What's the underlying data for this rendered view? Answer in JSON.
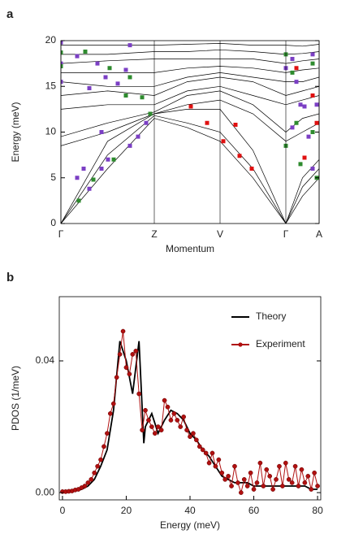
{
  "chart_data": [
    {
      "type": "line",
      "panel": "a",
      "ylabel": "Energy (meV)",
      "xlabel": "Momentum",
      "xlim": [
        0,
        3.18
      ],
      "ylim": [
        0,
        20
      ],
      "xticks": [
        {
          "value": 0,
          "label": "Γ"
        },
        {
          "value": 1.15,
          "label": "Z"
        },
        {
          "value": 1.96,
          "label": "V"
        },
        {
          "value": 2.77,
          "label": "Γ"
        },
        {
          "value": 3.18,
          "label": "A"
        }
      ],
      "yticks": [
        0,
        5,
        10,
        15,
        20
      ],
      "grid": "x",
      "series": [
        {
          "style": "line",
          "color": "#000000",
          "x": [
            0,
            0.575,
            1.15,
            1.555,
            1.96,
            2.365,
            2.77,
            2.975,
            3.18
          ],
          "values": [
            0,
            6,
            11.5,
            10.5,
            9,
            5,
            0,
            3,
            5
          ]
        },
        {
          "style": "line",
          "color": "#000000",
          "x": [
            0,
            0.575,
            1.15,
            1.555,
            1.96,
            2.365,
            2.77,
            2.975,
            3.18
          ],
          "values": [
            0,
            7.5,
            11.8,
            11,
            10,
            6,
            0,
            4,
            6
          ]
        },
        {
          "style": "line",
          "color": "#000000",
          "x": [
            0,
            0.575,
            1.15,
            1.555,
            1.96,
            2.365,
            2.77,
            2.975,
            3.18
          ],
          "values": [
            0,
            9,
            12,
            12.5,
            12.5,
            8,
            0,
            5,
            7
          ]
        },
        {
          "style": "line",
          "color": "#000000",
          "x": [
            0,
            0.575,
            1.15,
            1.555,
            1.96,
            2.365,
            2.77,
            2.975,
            3.18
          ],
          "values": [
            8.5,
            10,
            12,
            13,
            13.5,
            12,
            9,
            10,
            11
          ]
        },
        {
          "style": "line",
          "color": "#000000",
          "x": [
            0,
            0.575,
            1.15,
            1.555,
            1.96,
            2.365,
            2.77,
            2.975,
            3.18
          ],
          "values": [
            9.5,
            11,
            12.2,
            14,
            14.5,
            13,
            10,
            11.5,
            12
          ]
        },
        {
          "style": "line",
          "color": "#000000",
          "x": [
            0,
            0.575,
            1.15,
            1.555,
            1.96,
            2.365,
            2.77,
            2.975,
            3.18
          ],
          "values": [
            12.5,
            13,
            13,
            14.5,
            15,
            14,
            13,
            13.5,
            14
          ]
        },
        {
          "style": "line",
          "color": "#000000",
          "x": [
            0,
            0.575,
            1.15,
            1.555,
            1.96,
            2.365,
            2.77,
            2.975,
            3.18
          ],
          "values": [
            14,
            14.5,
            14,
            15.5,
            16,
            15.5,
            14,
            14.5,
            15
          ]
        },
        {
          "style": "line",
          "color": "#000000",
          "x": [
            0,
            0.575,
            1.15,
            1.555,
            1.96,
            2.365,
            2.77,
            2.975,
            3.18
          ],
          "values": [
            15.5,
            15,
            15,
            16,
            16.5,
            16,
            15.5,
            15.5,
            16
          ]
        },
        {
          "style": "line",
          "color": "#000000",
          "x": [
            0,
            0.575,
            1.15,
            1.555,
            1.96,
            2.365,
            2.77,
            2.975,
            3.18
          ],
          "values": [
            16.5,
            16.5,
            16.5,
            17,
            17.2,
            17,
            16.5,
            16.8,
            17
          ]
        },
        {
          "style": "line",
          "color": "#000000",
          "x": [
            0,
            0.575,
            1.15,
            1.555,
            1.96,
            2.365,
            2.77,
            2.975,
            3.18
          ],
          "values": [
            17.5,
            17.8,
            18,
            18,
            18,
            18,
            17.5,
            17.8,
            18
          ]
        },
        {
          "style": "line",
          "color": "#000000",
          "x": [
            0,
            0.575,
            1.15,
            1.555,
            1.96,
            2.365,
            2.77,
            2.975,
            3.18
          ],
          "values": [
            18.5,
            18.5,
            18.8,
            18.8,
            19,
            18.8,
            18.5,
            18.6,
            18.8
          ]
        },
        {
          "style": "line",
          "color": "#000000",
          "x": [
            0,
            0.575,
            1.15,
            1.555,
            1.96,
            2.365,
            2.77,
            2.975,
            3.18
          ],
          "values": [
            19.5,
            19.5,
            19.5,
            19.6,
            19.7,
            19.5,
            19.5,
            19.4,
            19.6
          ]
        },
        {
          "style": "points",
          "color": "#7b3fc4",
          "x": [
            0,
            0,
            0,
            0.2,
            0.28,
            0.35,
            0.4,
            0.5,
            0.58,
            0.2,
            0.35,
            0.45,
            0.55,
            0.5,
            0.7,
            0.8,
            0.85,
            0.85,
            0.95,
            1.05,
            2.77,
            2.85,
            2.9,
            2.95,
            3.0,
            3.05,
            3.1,
            3.15,
            2.85,
            3.1
          ],
          "values": [
            19.8,
            17.5,
            15.5,
            5,
            6,
            3.8,
            4.8,
            6,
            7,
            18.3,
            14.8,
            17.5,
            16,
            10,
            15.3,
            16.8,
            19.5,
            8.5,
            9.5,
            11,
            17,
            18,
            15.5,
            13,
            12.8,
            9.5,
            18.5,
            13,
            10.5,
            6
          ]
        },
        {
          "style": "points",
          "color": "#2e8b2e",
          "x": [
            0,
            0,
            0.22,
            0.3,
            0.4,
            0.6,
            0.65,
            0.8,
            0.85,
            1.0,
            1.1,
            2.77,
            2.77,
            2.85,
            2.9,
            2.95,
            3.1,
            3.1,
            3.15
          ],
          "values": [
            18.7,
            17.2,
            2.5,
            18.8,
            4.8,
            17,
            7,
            14,
            16,
            13.8,
            12,
            18.5,
            8.5,
            16.5,
            11,
            6.5,
            17.5,
            10,
            5
          ]
        },
        {
          "style": "points",
          "color": "#e01010",
          "x": [
            1.6,
            1.8,
            2.0,
            2.15,
            2.2,
            2.35,
            2.9,
            3.0,
            3.1,
            3.15
          ],
          "values": [
            12.8,
            11,
            9,
            10.8,
            7.4,
            6,
            17,
            7.2,
            14,
            11
          ]
        }
      ]
    },
    {
      "type": "line",
      "panel": "b",
      "ylabel": "PDOS (1/meV)",
      "xlabel": "Energy (meV)",
      "xlim": [
        -1,
        81
      ],
      "ylim": [
        -0.0022,
        0.0595
      ],
      "xticks": [
        0,
        20,
        40,
        60,
        80
      ],
      "yticks": [
        {
          "value": 0,
          "label": "0.00"
        },
        {
          "value": 0.04,
          "label": "0.04"
        }
      ],
      "grid": "none",
      "legend": "upper right",
      "series": [
        {
          "name": "Theory",
          "style": "line",
          "color": "#000000",
          "x": [
            0,
            2,
            4,
            6,
            8,
            10,
            12,
            14,
            16,
            18,
            20,
            22,
            24,
            25.5,
            26,
            28,
            30,
            32,
            34,
            36,
            38,
            40,
            42,
            44,
            46,
            48,
            50,
            52,
            54,
            56,
            58,
            60,
            62,
            64,
            66,
            68,
            70,
            72,
            74,
            76,
            78,
            80
          ],
          "values": [
            0,
            0.0002,
            0.0005,
            0.001,
            0.002,
            0.004,
            0.008,
            0.013,
            0.025,
            0.046,
            0.04,
            0.03,
            0.046,
            0.015,
            0.02,
            0.024,
            0.018,
            0.022,
            0.025,
            0.024,
            0.022,
            0.018,
            0.016,
            0.013,
            0.011,
            0.008,
            0.005,
            0.004,
            0.003,
            0.003,
            0.003,
            0.002,
            0.002,
            0.002,
            0.002,
            0.002,
            0.002,
            0.002,
            0.002,
            0.002,
            0.001,
            0.001
          ]
        },
        {
          "name": "Experiment",
          "style": "linepoints",
          "color": "#b01010",
          "x": [
            0,
            1,
            2,
            3,
            4,
            5,
            6,
            7,
            8,
            9,
            10,
            11,
            12,
            13,
            14,
            15,
            16,
            17,
            18,
            19,
            20,
            21,
            22,
            23,
            24,
            25,
            26,
            27,
            28,
            29,
            30,
            31,
            32,
            33,
            34,
            35,
            36,
            37,
            38,
            39,
            40,
            41,
            42,
            43,
            44,
            45,
            46,
            47,
            48,
            49,
            50,
            51,
            52,
            53,
            54,
            55,
            56,
            57,
            58,
            59,
            60,
            61,
            62,
            63,
            64,
            65,
            66,
            67,
            68,
            69,
            70,
            71,
            72,
            73,
            74,
            75,
            76,
            77,
            78,
            79,
            80
          ],
          "values": [
            0.0003,
            0.0003,
            0.0004,
            0.0005,
            0.0008,
            0.001,
            0.0015,
            0.002,
            0.003,
            0.004,
            0.006,
            0.008,
            0.01,
            0.014,
            0.018,
            0.024,
            0.027,
            0.035,
            0.042,
            0.049,
            0.038,
            0.036,
            0.042,
            0.043,
            0.03,
            0.019,
            0.025,
            0.022,
            0.02,
            0.018,
            0.02,
            0.019,
            0.028,
            0.026,
            0.022,
            0.024,
            0.022,
            0.02,
            0.023,
            0.019,
            0.017,
            0.018,
            0.016,
            0.014,
            0.013,
            0.012,
            0.009,
            0.012,
            0.008,
            0.01,
            0.006,
            0.004,
            0.005,
            0.002,
            0.008,
            0.003,
            0.0,
            0.004,
            0.002,
            0.006,
            0.001,
            0.003,
            0.009,
            0.002,
            0.007,
            0.005,
            0.001,
            0.004,
            0.008,
            0.002,
            0.009,
            0.004,
            0.003,
            0.008,
            0.002,
            0.007,
            0.003,
            0.005,
            0.001,
            0.006,
            0.002
          ]
        }
      ]
    }
  ]
}
